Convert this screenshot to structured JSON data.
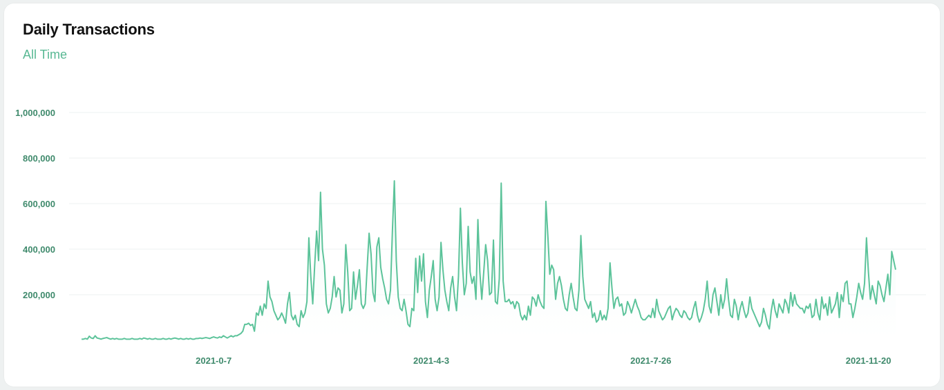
{
  "card": {
    "title": "Daily Transactions",
    "subtitle": "All Time"
  },
  "colors": {
    "line": "#5cc39a",
    "area_top": "#e5f8f1",
    "grid": "#eef2f1",
    "tick_text": "#3f8a6c",
    "subtitle": "#58b893"
  },
  "chart_data": {
    "type": "area",
    "title": "Daily Transactions",
    "subtitle": "All Time",
    "xlabel": "",
    "ylabel": "",
    "ylim": [
      0,
      1000000
    ],
    "y_ticks": [
      200000,
      400000,
      600000,
      800000,
      1000000
    ],
    "y_tick_labels": [
      "200,000",
      "400,000",
      "600,000",
      "800,000",
      "1,000,000"
    ],
    "x_tick_labels": [
      "2021-0-7",
      "2021-4-3",
      "2021-7-26",
      "2021-11-20"
    ],
    "x_tick_positions": [
      68,
      180,
      293,
      405
    ],
    "grid": true,
    "legend": "none",
    "series": [
      {
        "values": [
          5000,
          5000,
          8000,
          5000,
          18000,
          10000,
          8000,
          20000,
          10000,
          8000,
          5000,
          8000,
          10000,
          12000,
          8000,
          5000,
          8000,
          5000,
          8000,
          5000,
          5000,
          5000,
          8000,
          5000,
          5000,
          5000,
          8000,
          5000,
          5000,
          5000,
          8000,
          5000,
          10000,
          8000,
          5000,
          8000,
          5000,
          5000,
          8000,
          5000,
          5000,
          5000,
          8000,
          5000,
          5000,
          8000,
          5000,
          8000,
          10000,
          8000,
          5000,
          8000,
          5000,
          5000,
          8000,
          5000,
          8000,
          5000,
          5000,
          8000,
          8000,
          10000,
          8000,
          10000,
          12000,
          10000,
          8000,
          12000,
          15000,
          12000,
          10000,
          15000,
          12000,
          20000,
          15000,
          10000,
          15000,
          20000,
          15000,
          20000,
          20000,
          25000,
          30000,
          40000,
          70000,
          70000,
          75000,
          65000,
          70000,
          40000,
          120000,
          110000,
          150000,
          110000,
          160000,
          140000,
          260000,
          190000,
          170000,
          130000,
          110000,
          90000,
          100000,
          120000,
          100000,
          75000,
          160000,
          210000,
          110000,
          90000,
          110000,
          70000,
          60000,
          130000,
          100000,
          120000,
          170000,
          450000,
          280000,
          160000,
          330000,
          480000,
          350000,
          650000,
          400000,
          330000,
          160000,
          120000,
          140000,
          190000,
          280000,
          190000,
          230000,
          220000,
          120000,
          160000,
          420000,
          300000,
          130000,
          140000,
          300000,
          180000,
          240000,
          310000,
          160000,
          140000,
          160000,
          320000,
          470000,
          380000,
          210000,
          170000,
          410000,
          450000,
          320000,
          270000,
          230000,
          180000,
          160000,
          220000,
          480000,
          700000,
          350000,
          190000,
          140000,
          130000,
          180000,
          130000,
          70000,
          60000,
          140000,
          130000,
          360000,
          210000,
          370000,
          260000,
          380000,
          170000,
          100000,
          220000,
          280000,
          350000,
          180000,
          130000,
          190000,
          430000,
          310000,
          220000,
          170000,
          130000,
          230000,
          280000,
          190000,
          130000,
          280000,
          580000,
          340000,
          200000,
          250000,
          500000,
          300000,
          250000,
          280000,
          180000,
          530000,
          300000,
          180000,
          300000,
          420000,
          350000,
          200000,
          210000,
          440000,
          170000,
          160000,
          270000,
          690000,
          260000,
          170000,
          170000,
          180000,
          160000,
          170000,
          140000,
          170000,
          160000,
          110000,
          90000,
          110000,
          90000,
          150000,
          110000,
          190000,
          180000,
          150000,
          200000,
          170000,
          150000,
          140000,
          610000,
          460000,
          290000,
          330000,
          310000,
          180000,
          250000,
          280000,
          240000,
          180000,
          140000,
          130000,
          200000,
          250000,
          190000,
          140000,
          130000,
          220000,
          460000,
          280000,
          180000,
          160000,
          140000,
          170000,
          100000,
          120000,
          80000,
          90000,
          130000,
          90000,
          110000,
          90000,
          140000,
          340000,
          230000,
          140000,
          180000,
          190000,
          150000,
          160000,
          110000,
          120000,
          170000,
          150000,
          120000,
          150000,
          180000,
          150000,
          130000,
          100000,
          90000,
          90000,
          100000,
          110000,
          100000,
          140000,
          100000,
          180000,
          130000,
          110000,
          90000,
          100000,
          120000,
          140000,
          150000,
          90000,
          120000,
          140000,
          130000,
          110000,
          100000,
          130000,
          120000,
          100000,
          90000,
          100000,
          140000,
          170000,
          110000,
          80000,
          100000,
          130000,
          180000,
          260000,
          150000,
          120000,
          200000,
          230000,
          170000,
          110000,
          200000,
          140000,
          180000,
          270000,
          180000,
          110000,
          100000,
          180000,
          150000,
          90000,
          140000,
          170000,
          130000,
          100000,
          120000,
          190000,
          140000,
          120000,
          100000,
          80000,
          60000,
          80000,
          140000,
          110000,
          70000,
          50000,
          130000,
          180000,
          130000,
          100000,
          160000,
          140000,
          120000,
          180000,
          160000,
          120000,
          210000,
          150000,
          200000,
          160000,
          150000,
          140000,
          140000,
          120000,
          150000,
          140000,
          160000,
          100000,
          110000,
          180000,
          120000,
          90000,
          190000,
          140000,
          160000,
          110000,
          190000,
          120000,
          140000,
          160000,
          210000,
          100000,
          200000,
          170000,
          250000,
          260000,
          160000,
          160000,
          100000,
          140000,
          190000,
          250000,
          210000,
          180000,
          250000,
          450000,
          300000,
          180000,
          240000,
          200000,
          160000,
          260000,
          240000,
          200000,
          170000,
          230000,
          290000,
          200000,
          390000,
          350000,
          310000
        ]
      }
    ]
  }
}
